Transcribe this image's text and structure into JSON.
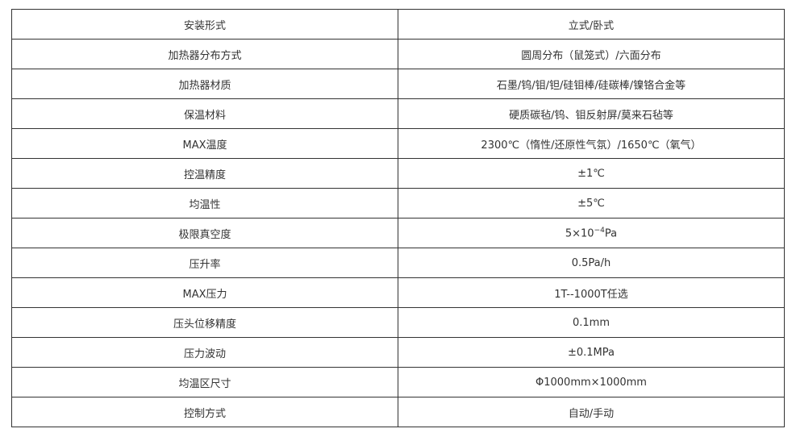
{
  "rows": [
    {
      "label": "安装形式",
      "value": "立式/卧式"
    },
    {
      "label": "加热器分布方式",
      "value": "圆周分布（鼠笼式）/六面分布"
    },
    {
      "label": "加热器材质",
      "value": "石墨/钨/钼/钽/硅钼棒/硅碳棒/镍铬合金等"
    },
    {
      "label": "保温材料",
      "value": "硬质碳毡/钨、钼反射屏/莫来石毡等"
    },
    {
      "label": "MAX温度",
      "value": "2300℃（惰性/还原性气氛）/1650℃（氧气）"
    },
    {
      "label": "控温精度",
      "value": "±1℃"
    },
    {
      "label": "均温性",
      "value": "±5℃"
    },
    {
      "label": "极限真空度",
      "value_base": "5×10",
      "value_exp": "−4",
      "value_unit": "Pa"
    },
    {
      "label": "压升率",
      "value": "0.5Pa/h"
    },
    {
      "label": "MAX压力",
      "value": "1T--1000T任选"
    },
    {
      "label": "压头位移精度",
      "value": "0.1mm"
    },
    {
      "label": "压力波动",
      "value": "±0.1MPa"
    },
    {
      "label": "均温区尺寸",
      "value": "Φ1000mm×1000mm"
    },
    {
      "label": "控制方式",
      "value": "自动/手动"
    }
  ]
}
